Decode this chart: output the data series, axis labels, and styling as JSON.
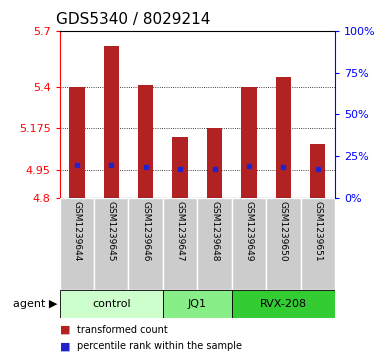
{
  "title": "GDS5340 / 8029214",
  "samples": [
    "GSM1239644",
    "GSM1239645",
    "GSM1239646",
    "GSM1239647",
    "GSM1239648",
    "GSM1239649",
    "GSM1239650",
    "GSM1239651"
  ],
  "bar_tops": [
    5.4,
    5.62,
    5.41,
    5.13,
    5.175,
    5.4,
    5.45,
    5.09
  ],
  "bar_bottom": 4.8,
  "blue_values": [
    4.975,
    4.975,
    4.965,
    4.958,
    4.958,
    4.97,
    4.968,
    4.955
  ],
  "ylim": [
    4.8,
    5.7
  ],
  "yticks_left": [
    4.8,
    4.95,
    5.175,
    5.4,
    5.7
  ],
  "yticks_right_pct": [
    0,
    25,
    50,
    75,
    100
  ],
  "bar_color": "#B22222",
  "blue_color": "#2222CC",
  "group_labels": [
    "control",
    "JQ1",
    "RVX-208"
  ],
  "group_ranges": [
    [
      0,
      2
    ],
    [
      3,
      4
    ],
    [
      5,
      7
    ]
  ],
  "group_colors": [
    "#ccffcc",
    "#88ee88",
    "#33cc33"
  ],
  "agent_label": "agent",
  "bg_color": "#cccccc",
  "plot_bg": "#ffffff",
  "title_fontsize": 11,
  "tick_fontsize": 8,
  "bar_width": 0.45,
  "legend_square_red": "transformed count",
  "legend_square_blue": "percentile rank within the sample"
}
